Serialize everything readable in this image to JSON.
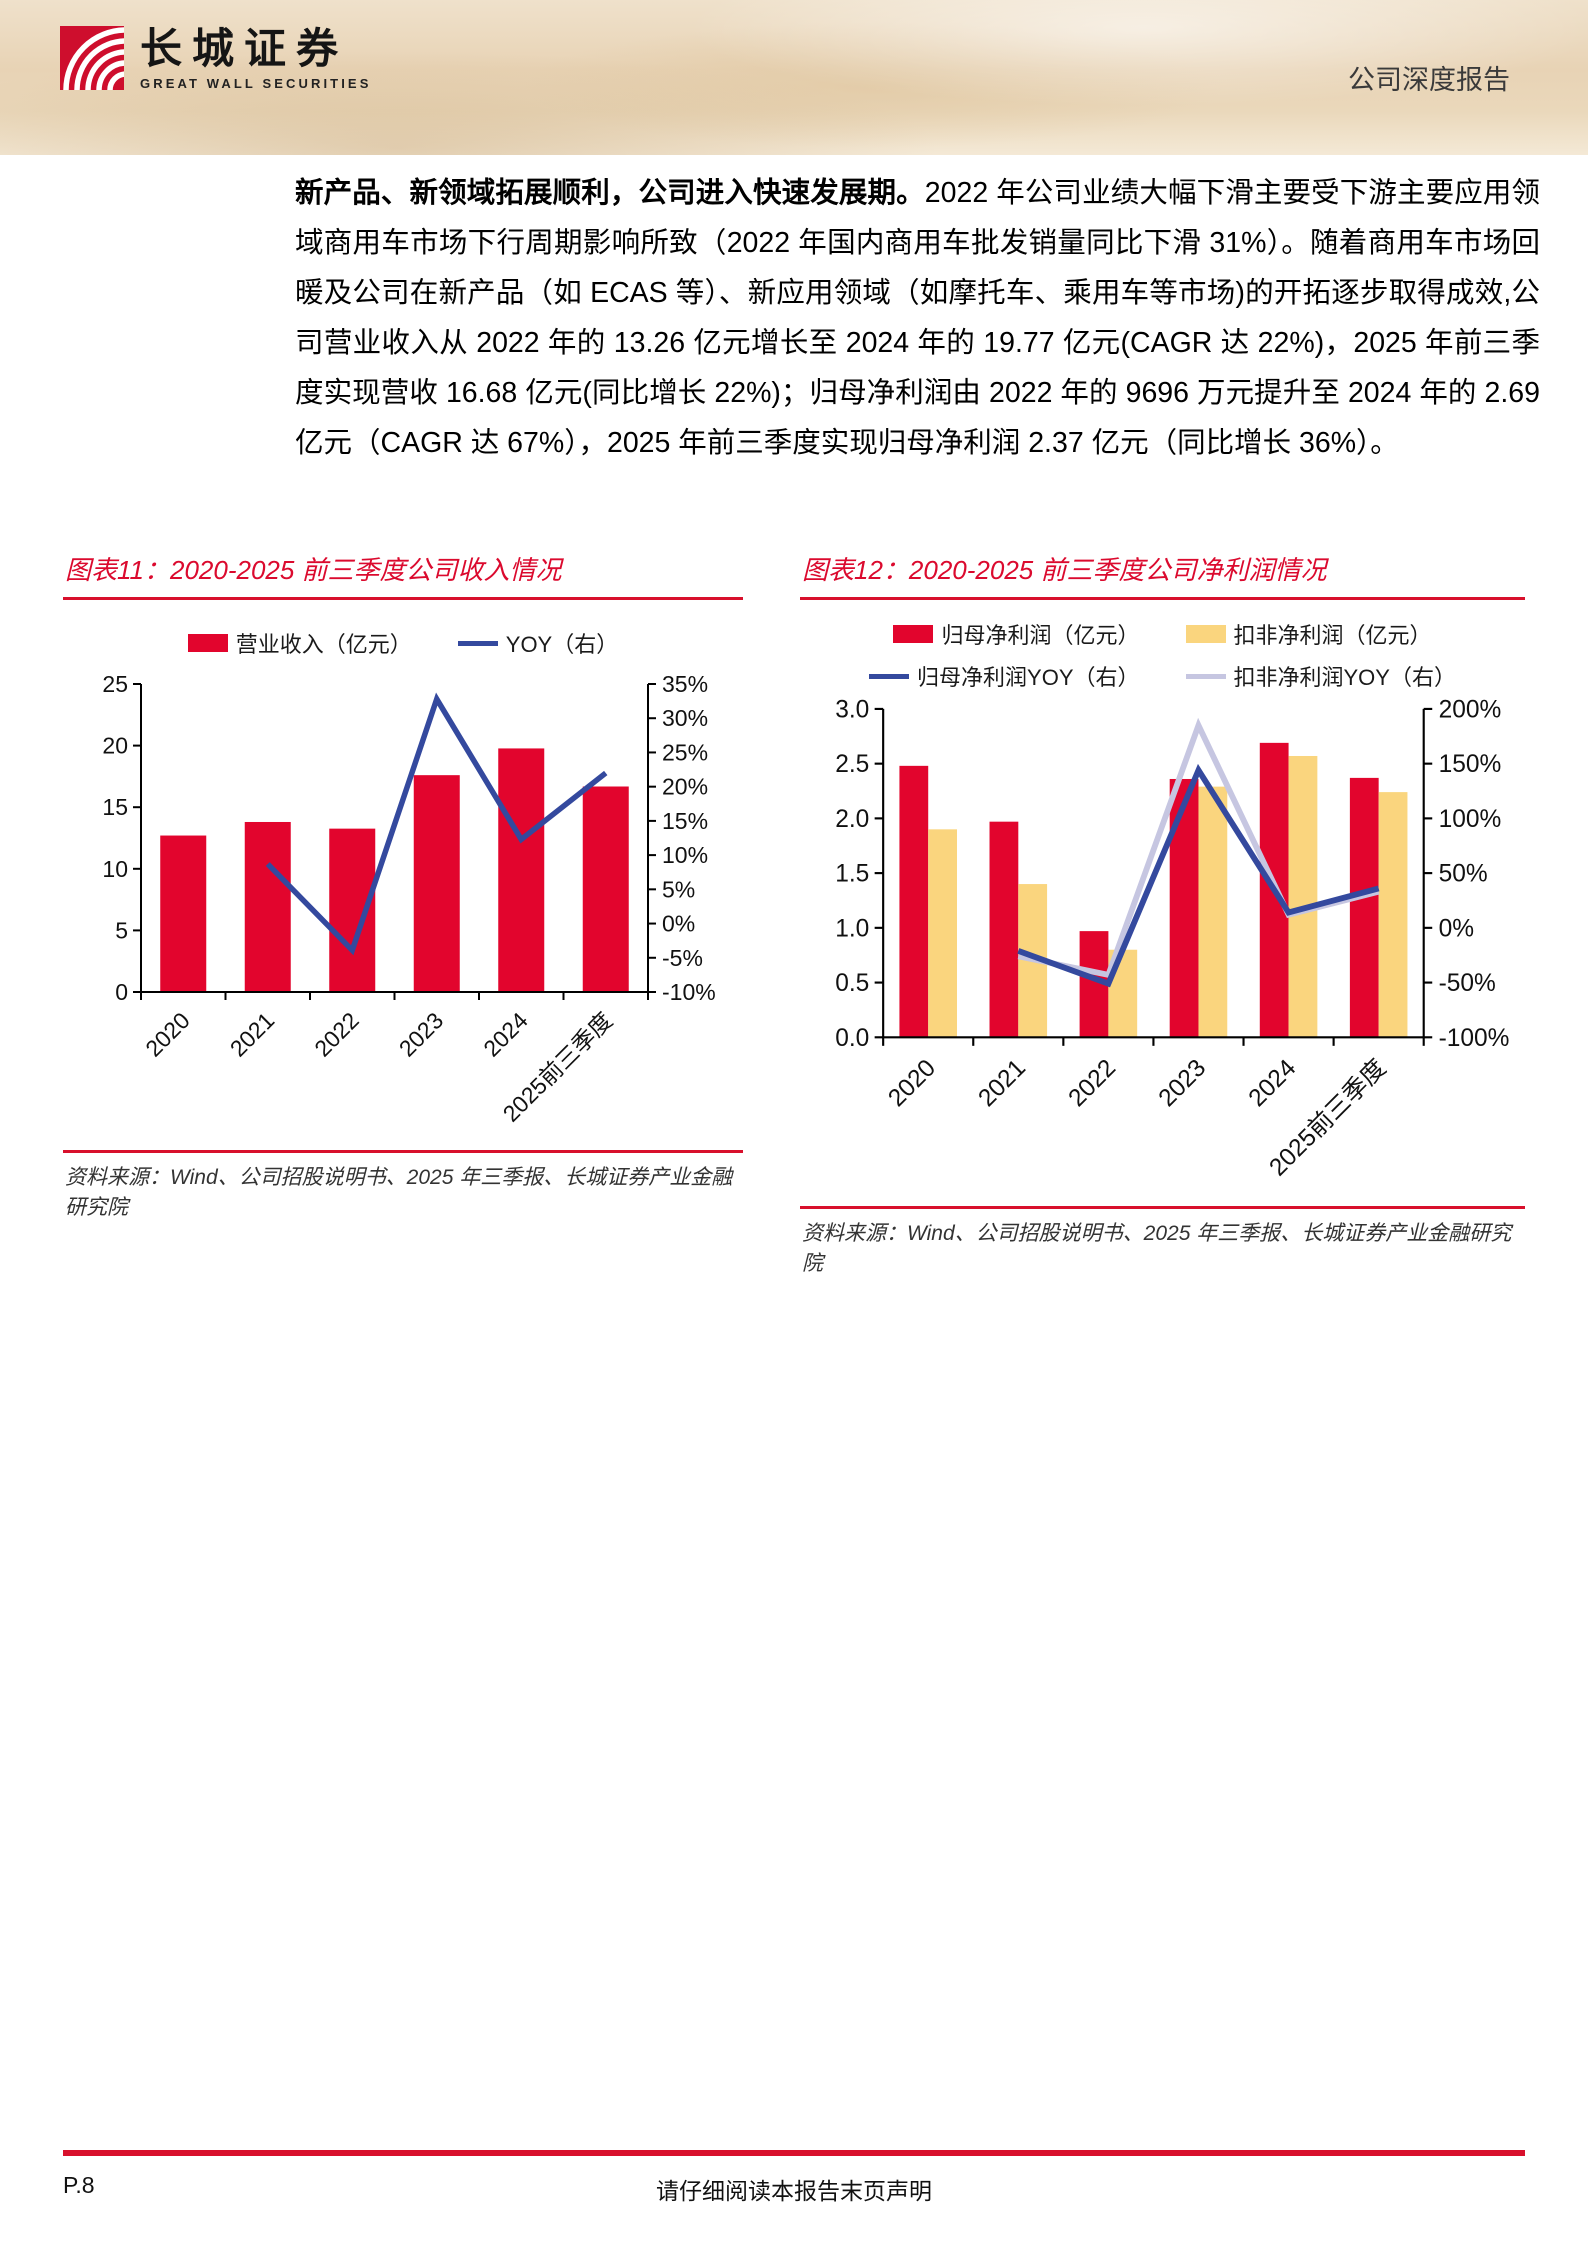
{
  "header": {
    "logo_cn": "长城证券",
    "logo_en": "GREAT WALL SECURITIES",
    "report_type": "公司深度报告"
  },
  "paragraph": {
    "lead_bold": "新产品、新领域拓展顺利，公司进入快速发展期。",
    "body": "2022 年公司业绩大幅下滑主要受下游主要应用领域商用车市场下行周期影响所致（2022 年国内商用车批发销量同比下滑 31%）。随着商用车市场回暖及公司在新产品（如 ECAS 等）、新应用领域（如摩托车、乘用车等市场)的开拓逐步取得成效,公司营业收入从 2022 年的 13.26 亿元增长至 2024 年的 19.77 亿元(CAGR 达 22%)，2025 年前三季度实现营收 16.68 亿元(同比增长 22%)；归母净利润由 2022 年的 9696 万元提升至 2024 年的 2.69 亿元（CAGR 达 67%），2025 年前三季度实现归母净利润 2.37 亿元（同比增长 36%）。"
  },
  "figures": [
    {
      "title": "图表11：2020-2025 前三季度公司收入情况",
      "source": "资料来源：Wind、公司招股说明书、2025 年三季报、长城证券产业金融研究院"
    },
    {
      "title": "图表12：2020-2025 前三季度公司净利润情况",
      "source": "资料来源：Wind、公司招股说明书、2025 年三季报、长城证券产业金融研究院"
    }
  ],
  "chart_data": [
    {
      "type": "bar",
      "title": "2020-2025 前三季度公司收入情况",
      "categories": [
        "2020",
        "2021",
        "2022",
        "2023",
        "2024",
        "2025前三季度"
      ],
      "series": [
        {
          "name": "营业收入（亿元）",
          "type": "bar",
          "axis": "left",
          "color": "#E2052D",
          "values": [
            12.7,
            13.8,
            13.26,
            17.6,
            19.77,
            16.68
          ]
        },
        {
          "name": "YOY（右）",
          "type": "line",
          "axis": "right",
          "color": "#34499E",
          "values": [
            null,
            8.7,
            -3.9,
            32.8,
            12.3,
            22
          ]
        }
      ],
      "left_axis": {
        "min": 0,
        "max": 25,
        "step": 5,
        "decimals": 0
      },
      "right_axis": {
        "min": -10,
        "max": 35,
        "step": 5,
        "suffix": "%"
      },
      "legend_position": "top",
      "grid": false
    },
    {
      "type": "bar",
      "title": "2020-2025 前三季度公司净利润情况",
      "categories": [
        "2020",
        "2021",
        "2022",
        "2023",
        "2024",
        "2025前三季度"
      ],
      "series": [
        {
          "name": "归母净利润（亿元）",
          "type": "bar",
          "axis": "left",
          "color": "#E2052D",
          "values": [
            2.48,
            1.97,
            0.97,
            2.36,
            2.69,
            2.37
          ]
        },
        {
          "name": "扣非净利润（亿元）",
          "type": "bar",
          "axis": "left",
          "color": "#FAD57E",
          "values": [
            1.9,
            1.4,
            0.8,
            2.29,
            2.57,
            2.24
          ]
        },
        {
          "name": "归母净利润YOY（右）",
          "type": "line",
          "axis": "right",
          "color": "#34499E",
          "values": [
            null,
            -21,
            -51,
            144,
            14,
            36
          ]
        },
        {
          "name": "扣非净利润YOY（右）",
          "type": "line",
          "axis": "right",
          "color": "#C6C6E1",
          "values": [
            null,
            -26,
            -43,
            185,
            12,
            33
          ]
        }
      ],
      "left_axis": {
        "min": 0,
        "max": 3,
        "step": 0.5,
        "decimals": 1
      },
      "right_axis": {
        "min": -100,
        "max": 200,
        "step": 50,
        "suffix": "%"
      },
      "legend_position": "top",
      "grid": false
    }
  ],
  "colors": {
    "accent_red": "#D8102C",
    "bar_red": "#E2052D",
    "bar_yellow": "#FAD57E",
    "line_blue": "#34499E",
    "line_lavender": "#C6C6E1"
  },
  "footer": {
    "page": "P.8",
    "disclaimer": "请仔细阅读本报告末页声明"
  }
}
